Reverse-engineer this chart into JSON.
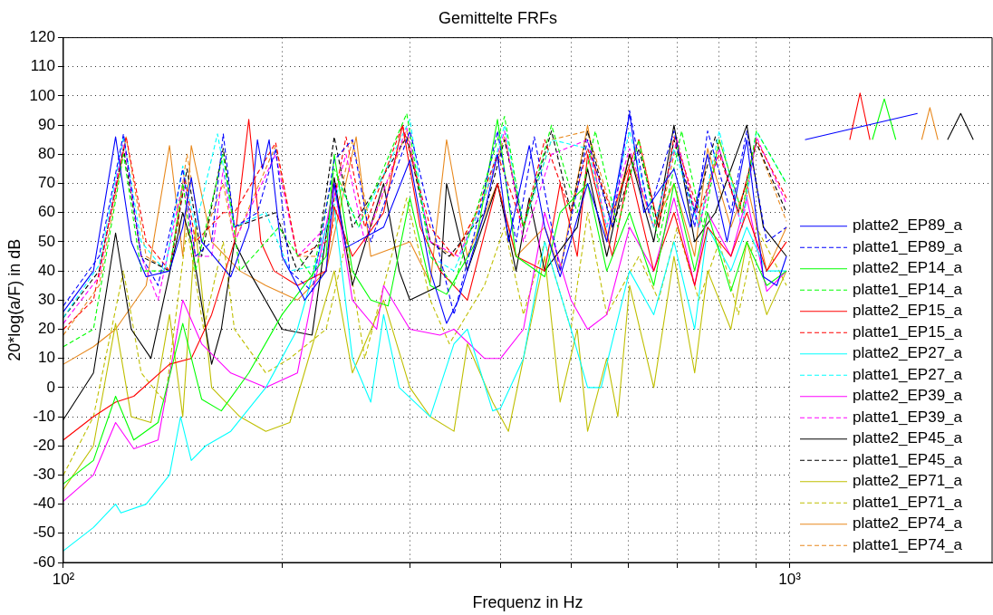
{
  "chart_data": {
    "type": "line",
    "title": "Gemittelte FRFs",
    "xlabel": "Frequenz in Hz",
    "ylabel": "20*log(a/F) in dB",
    "log": "x",
    "grid": true,
    "legend": "bottom right",
    "marker": "none",
    "xlim": [
      100,
      1900
    ],
    "xticks": [
      {
        "value": 100,
        "label": "10²"
      },
      {
        "value": 200,
        "label": null
      },
      {
        "value": 300,
        "label": null
      },
      {
        "value": 400,
        "label": null
      },
      {
        "value": 500,
        "label": null
      },
      {
        "value": 600,
        "label": null
      },
      {
        "value": 700,
        "label": null
      },
      {
        "value": 800,
        "label": null
      },
      {
        "value": 900,
        "label": null
      },
      {
        "value": 1000,
        "label": "10³"
      }
    ],
    "ylim": [
      -60,
      120
    ],
    "yticks": [
      -60,
      -50,
      -40,
      -30,
      -20,
      -10,
      0,
      10,
      20,
      30,
      40,
      50,
      60,
      70,
      80,
      90,
      100,
      110,
      120
    ],
    "series": [
      {
        "name": "platte2_EP89_a",
        "color": "#0000ff",
        "line_style": "solid",
        "x": [
          100,
          110,
          118,
          124,
          130,
          140,
          146,
          150,
          155,
          170,
          180,
          185,
          188,
          192,
          200,
          215,
          230,
          236,
          245,
          276,
          300,
          320,
          337,
          350,
          380,
          396,
          410,
          438,
          460,
          483,
          527,
          560,
          602,
          630,
          693,
          730,
          771,
          820,
          873,
          920,
          960,
          990,
          1000,
          1050,
          1500
        ],
        "values": [
          26,
          40,
          86,
          50,
          38,
          40,
          55,
          72,
          50,
          38,
          55,
          85,
          75,
          85,
          45,
          30,
          40,
          70,
          48,
          55,
          78,
          40,
          22,
          30,
          60,
          80,
          50,
          83,
          55,
          38,
          70,
          50,
          94,
          60,
          75,
          55,
          80,
          50,
          85,
          38,
          35,
          45,
          null,
          85,
          94
        ]
      },
      {
        "name": "platte1_EP89_a",
        "color": "#0000ff",
        "line_style": "dashed",
        "x": [
          100,
          112,
          121,
          128,
          135,
          142,
          146,
          152,
          160,
          166,
          172,
          185,
          196,
          205,
          220,
          236,
          250,
          265,
          300,
          330,
          345,
          370,
          396,
          420,
          445,
          483,
          527,
          570,
          602,
          640,
          693,
          740,
          771,
          830,
          873,
          930,
          990
        ],
        "values": [
          28,
          45,
          87,
          45,
          35,
          60,
          75,
          45,
          50,
          87,
          55,
          60,
          82,
          40,
          33,
          78,
          85,
          50,
          88,
          45,
          25,
          55,
          88,
          50,
          86,
          40,
          85,
          55,
          95,
          60,
          88,
          55,
          88,
          60,
          88,
          50,
          55
        ]
      },
      {
        "name": "platte2_EP14_a",
        "color": "#00ff00",
        "line_style": "solid",
        "x": [
          100,
          110,
          118,
          125,
          135,
          146,
          155,
          165,
          180,
          200,
          230,
          236,
          250,
          265,
          280,
          300,
          320,
          337,
          370,
          396,
          420,
          460,
          483,
          527,
          560,
          602,
          650,
          693,
          740,
          771,
          830,
          873,
          930,
          990,
          1000,
          1300,
          1350,
          1400
        ],
        "values": [
          -33,
          -25,
          -3,
          -18,
          -12,
          22,
          -4,
          -8,
          5,
          25,
          45,
          80,
          40,
          30,
          28,
          65,
          35,
          32,
          50,
          92,
          45,
          38,
          60,
          70,
          40,
          60,
          35,
          70,
          40,
          60,
          33,
          50,
          35,
          40,
          null,
          85,
          99,
          85
        ]
      },
      {
        "name": "platte1_EP14_a",
        "color": "#00ff00",
        "line_style": "dashed",
        "x": [
          100,
          110,
          121,
          128,
          140,
          146,
          152,
          166,
          175,
          198,
          220,
          236,
          255,
          297,
          320,
          345,
          380,
          405,
          430,
          470,
          510,
          540,
          580,
          620,
          660,
          710,
          760,
          800,
          860,
          900,
          990
        ],
        "values": [
          14,
          20,
          80,
          40,
          40,
          70,
          40,
          80,
          40,
          55,
          38,
          75,
          55,
          94,
          45,
          35,
          70,
          93,
          55,
          90,
          60,
          88,
          55,
          85,
          50,
          88,
          55,
          85,
          60,
          88,
          70
        ]
      },
      {
        "name": "platte2_EP15_a",
        "color": "#ff0000",
        "line_style": "solid",
        "x": [
          100,
          110,
          118,
          125,
          140,
          150,
          160,
          172,
          180,
          187,
          195,
          210,
          230,
          236,
          250,
          276,
          293,
          310,
          330,
          360,
          396,
          420,
          460,
          483,
          510,
          527,
          570,
          602,
          650,
          693,
          740,
          771,
          830,
          873,
          930,
          990,
          1000,
          1210,
          1250,
          1290
        ],
        "values": [
          -18,
          -10,
          -5,
          -3,
          8,
          10,
          25,
          50,
          92,
          50,
          40,
          35,
          40,
          62,
          45,
          60,
          90,
          55,
          40,
          30,
          70,
          45,
          40,
          70,
          45,
          80,
          45,
          75,
          40,
          60,
          35,
          55,
          45,
          60,
          40,
          50,
          null,
          85,
          101,
          85
        ]
      },
      {
        "name": "platte1_EP15_a",
        "color": "#ff0000",
        "line_style": "dashed",
        "x": [
          100,
          110,
          122,
          130,
          140,
          147,
          152,
          166,
          172,
          196,
          210,
          230,
          245,
          260,
          293,
          320,
          345,
          370,
          396,
          430,
          460,
          500,
          527,
          570,
          620,
          660,
          693,
          750,
          800,
          850,
          900,
          990
        ],
        "values": [
          20,
          30,
          86,
          50,
          40,
          72,
          50,
          60,
          60,
          84,
          45,
          50,
          86,
          55,
          90,
          55,
          45,
          60,
          80,
          55,
          85,
          60,
          82,
          60,
          85,
          55,
          86,
          60,
          80,
          60,
          85,
          65
        ]
      },
      {
        "name": "platte2_EP27_a",
        "color": "#00ffff",
        "line_style": "solid",
        "x": [
          100,
          110,
          118,
          120,
          130,
          140,
          145,
          150,
          157,
          170,
          190,
          210,
          230,
          236,
          250,
          265,
          276,
          290,
          320,
          345,
          360,
          390,
          400,
          430,
          460,
          500,
          527,
          550,
          602,
          650,
          693,
          740,
          771,
          830,
          873,
          930,
          990
        ],
        "values": [
          -56,
          -48,
          -40,
          -43,
          -40,
          -30,
          -10,
          -25,
          -20,
          -15,
          0,
          20,
          55,
          62,
          10,
          -5,
          25,
          0,
          -10,
          15,
          20,
          -8,
          -7,
          10,
          50,
          20,
          0,
          0,
          40,
          25,
          50,
          20,
          55,
          40,
          55,
          40,
          40
        ]
      },
      {
        "name": "platte1_EP27_a",
        "color": "#00ffff",
        "line_style": "dashed",
        "x": [
          100,
          112,
          121,
          128,
          138,
          146,
          152,
          163,
          172,
          190,
          205,
          225,
          240,
          255,
          300,
          320,
          345,
          380,
          405,
          430,
          470,
          527,
          560,
          602,
          650,
          693,
          750,
          800,
          860,
          900,
          990
        ],
        "values": [
          24,
          42,
          86,
          50,
          40,
          76,
          55,
          87,
          55,
          60,
          40,
          42,
          70,
          55,
          92,
          45,
          40,
          65,
          90,
          55,
          85,
          82,
          55,
          88,
          55,
          82,
          55,
          88,
          55,
          88,
          70
        ]
      },
      {
        "name": "platte2_EP39_a",
        "color": "#ff00ff",
        "line_style": "solid",
        "x": [
          100,
          110,
          118,
          125,
          135,
          146,
          155,
          170,
          190,
          210,
          236,
          250,
          270,
          276,
          300,
          330,
          345,
          380,
          400,
          430,
          460,
          500,
          527,
          560,
          602,
          650,
          693,
          740,
          771,
          830,
          873,
          930,
          990
        ],
        "values": [
          -39,
          -30,
          -12,
          -21,
          -18,
          30,
          15,
          5,
          0,
          5,
          70,
          30,
          20,
          35,
          20,
          18,
          20,
          10,
          10,
          20,
          60,
          30,
          20,
          25,
          55,
          40,
          65,
          35,
          60,
          45,
          65,
          33,
          40
        ]
      },
      {
        "name": "platte1_EP39_a",
        "color": "#ff00ff",
        "line_style": "dashed",
        "x": [
          100,
          112,
          121,
          128,
          135,
          146,
          152,
          160,
          166,
          172,
          196,
          210,
          230,
          245,
          260,
          297,
          320,
          350,
          380,
          405,
          430,
          470,
          527,
          560,
          602,
          650,
          700,
          750,
          800,
          860,
          900,
          990
        ],
        "values": [
          22,
          38,
          85,
          45,
          30,
          70,
          45,
          45,
          75,
          50,
          80,
          45,
          55,
          80,
          50,
          89,
          50,
          45,
          65,
          88,
          50,
          80,
          85,
          55,
          82,
          55,
          85,
          55,
          82,
          55,
          86,
          63
        ]
      },
      {
        "name": "platte2_EP45_a",
        "color": "#000000",
        "line_style": "solid",
        "x": [
          100,
          110,
          118,
          124,
          132,
          146,
          150,
          160,
          165,
          172,
          180,
          200,
          220,
          236,
          250,
          276,
          290,
          300,
          330,
          337,
          360,
          396,
          420,
          438,
          460,
          510,
          527,
          560,
          602,
          650,
          693,
          740,
          790,
          873,
          920,
          990,
          1000,
          1650,
          1720,
          1790
        ],
        "values": [
          -11,
          5,
          53,
          20,
          10,
          60,
          50,
          8,
          20,
          50,
          40,
          20,
          18,
          72,
          35,
          70,
          40,
          30,
          35,
          70,
          40,
          70,
          40,
          65,
          40,
          55,
          75,
          45,
          80,
          50,
          90,
          50,
          60,
          90,
          55,
          45,
          null,
          85,
          94,
          85
        ]
      },
      {
        "name": "platte1_EP45_a",
        "color": "#000000",
        "line_style": "dashed",
        "x": [
          100,
          112,
          121,
          128,
          140,
          148,
          155,
          166,
          172,
          196,
          210,
          225,
          236,
          250,
          297,
          320,
          340,
          380,
          405,
          430,
          470,
          500,
          527,
          570,
          620,
          660,
          693,
          740,
          790,
          850,
          900,
          990
        ],
        "values": [
          24,
          40,
          82,
          45,
          40,
          75,
          45,
          82,
          55,
          60,
          40,
          50,
          86,
          55,
          86,
          50,
          45,
          60,
          85,
          55,
          88,
          60,
          88,
          55,
          82,
          55,
          85,
          60,
          86,
          60,
          84,
          60
        ]
      },
      {
        "name": "platte2_EP71_a",
        "color": "#bfbf00",
        "line_style": "solid",
        "x": [
          100,
          110,
          118,
          124,
          132,
          140,
          146,
          152,
          160,
          175,
          190,
          205,
          236,
          250,
          276,
          300,
          320,
          345,
          360,
          390,
          410,
          430,
          460,
          483,
          510,
          527,
          560,
          580,
          602,
          650,
          693,
          740,
          771,
          830,
          873,
          930,
          990
        ],
        "values": [
          -35,
          -20,
          22,
          -10,
          -12,
          25,
          -10,
          55,
          0,
          -10,
          -15,
          -12,
          40,
          5,
          30,
          0,
          -10,
          -15,
          15,
          -5,
          -15,
          10,
          45,
          -5,
          20,
          -15,
          10,
          -10,
          35,
          0,
          45,
          5,
          40,
          20,
          50,
          25,
          40
        ]
      },
      {
        "name": "platte1_EP71_a",
        "color": "#bfbf00",
        "line_style": "dashed",
        "x": [
          100,
          110,
          121,
          128,
          138,
          148,
          156,
          166,
          172,
          190,
          205,
          230,
          245,
          260,
          297,
          320,
          340,
          380,
          405,
          430,
          460,
          500,
          527,
          560,
          620,
          660,
          700,
          750,
          800,
          850,
          900,
          990
        ],
        "values": [
          -30,
          -10,
          40,
          5,
          -5,
          55,
          20,
          50,
          20,
          5,
          10,
          20,
          50,
          10,
          65,
          30,
          15,
          35,
          55,
          25,
          50,
          20,
          60,
          25,
          45,
          30,
          55,
          30,
          50,
          25,
          55,
          35
        ]
      },
      {
        "name": "platte2_EP74_a",
        "color": "#e8891e",
        "line_style": "solid",
        "x": [
          100,
          110,
          118,
          130,
          140,
          146,
          150,
          160,
          175,
          190,
          210,
          230,
          253,
          265,
          300,
          320,
          337,
          360,
          396,
          420,
          460,
          483,
          527,
          560,
          602,
          650,
          693,
          740,
          771,
          830,
          873,
          930,
          990,
          1000,
          1520,
          1560,
          1600
        ],
        "values": [
          8,
          14,
          20,
          35,
          83,
          45,
          83,
          50,
          40,
          35,
          30,
          40,
          86,
          45,
          50,
          36,
          85,
          45,
          70,
          45,
          55,
          40,
          90,
          50,
          80,
          55,
          70,
          45,
          82,
          55,
          70,
          40,
          55,
          null,
          85,
          96,
          85
        ]
      },
      {
        "name": "platte1_EP74_a",
        "color": "#e8891e",
        "line_style": "dashed",
        "x": [
          100,
          112,
          122,
          130,
          140,
          148,
          155,
          166,
          172,
          196,
          210,
          230,
          250,
          265,
          297,
          320,
          345,
          380,
          405,
          430,
          470,
          527,
          570,
          620,
          660,
          700,
          750,
          800,
          860,
          900,
          990
        ],
        "values": [
          18,
          35,
          86,
          45,
          40,
          80,
          50,
          70,
          50,
          83,
          45,
          45,
          85,
          55,
          88,
          50,
          45,
          65,
          86,
          55,
          85,
          88,
          60,
          85,
          55,
          85,
          55,
          85,
          60,
          84,
          57
        ]
      }
    ]
  }
}
